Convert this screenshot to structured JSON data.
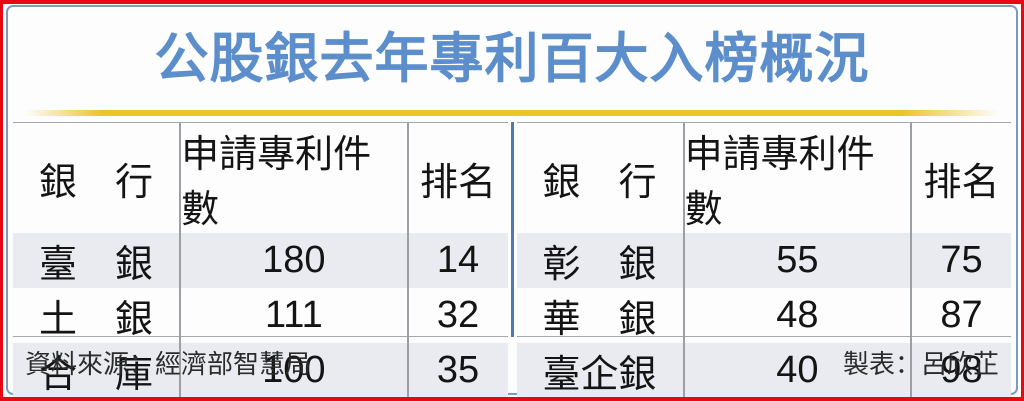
{
  "title": "公股銀去年專利百大入榜概況",
  "colors": {
    "outer_border_red": "#e60914",
    "inner_border_blue": "#7e9cba",
    "title_blue": "#5b8ecb",
    "gold_rule": "#edc32a",
    "table_divider_blue": "#4e79b4",
    "row_stripe": "#e9ebf1",
    "grid_line_gray": "#9aa0a6"
  },
  "tables": [
    {
      "headers": [
        "銀　行",
        "申請專利件數",
        "排名"
      ],
      "rows": [
        [
          "臺　銀",
          "180",
          "14"
        ],
        [
          "土　銀",
          "111",
          "32"
        ],
        [
          "合　庫",
          "100",
          "35"
        ]
      ]
    },
    {
      "headers": [
        "銀　行",
        "申請專利件數",
        "排名"
      ],
      "rows": [
        [
          "彰　銀",
          "55",
          "75"
        ],
        [
          "華　銀",
          "48",
          "87"
        ],
        [
          "臺企銀",
          "40",
          "98"
        ]
      ]
    }
  ],
  "footer": {
    "source": "資料來源：經濟部智慧局",
    "credit": "製表：呂欣芷"
  }
}
